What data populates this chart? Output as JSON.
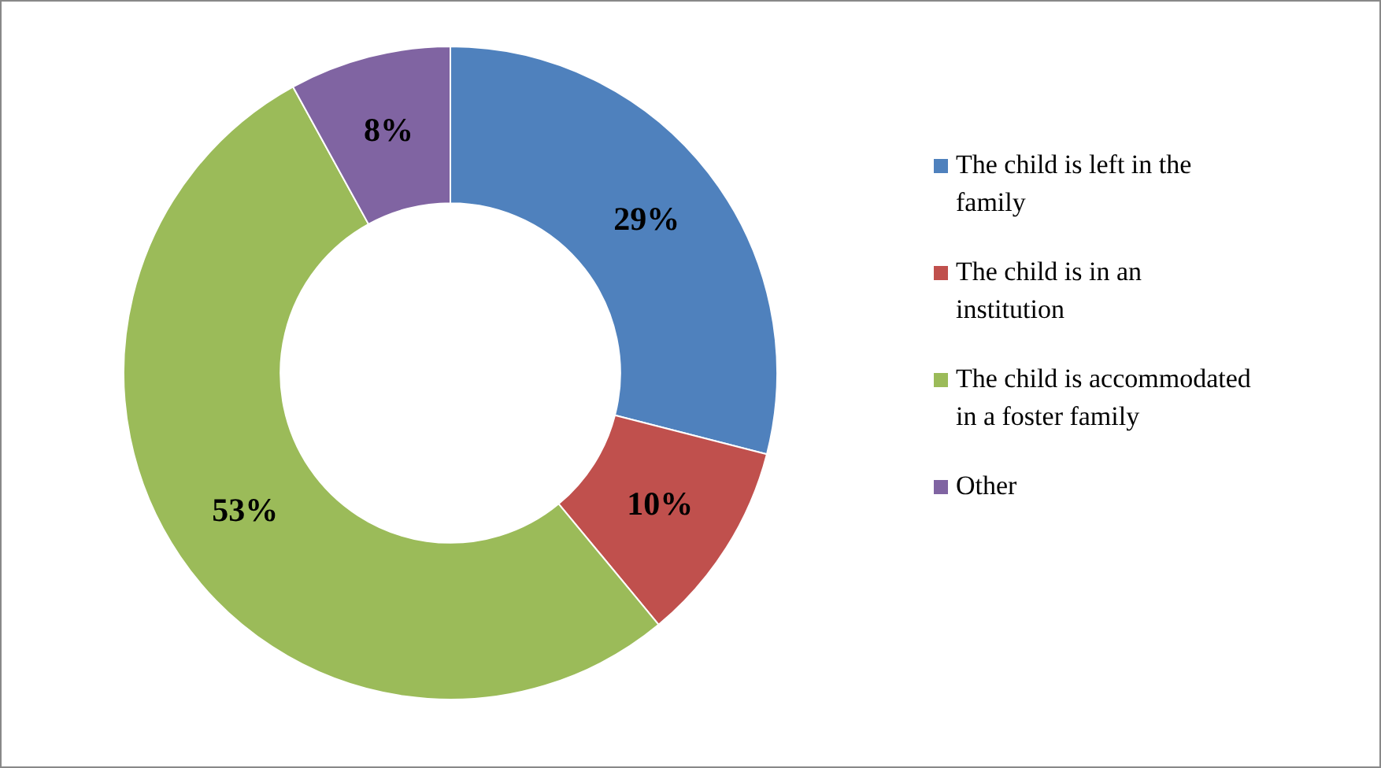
{
  "chart_data": {
    "type": "donut",
    "categories": [
      "The child is left in the family",
      "The child is in an institution",
      "The child is accommodated in a foster family",
      "Other"
    ],
    "values": [
      29,
      10,
      53,
      8
    ],
    "colors": [
      "#4f81bd",
      "#c0504d",
      "#9bbb59",
      "#8064a2"
    ],
    "value_labels": [
      "29%",
      "10%",
      "53%",
      "8%"
    ],
    "legend": "right"
  }
}
